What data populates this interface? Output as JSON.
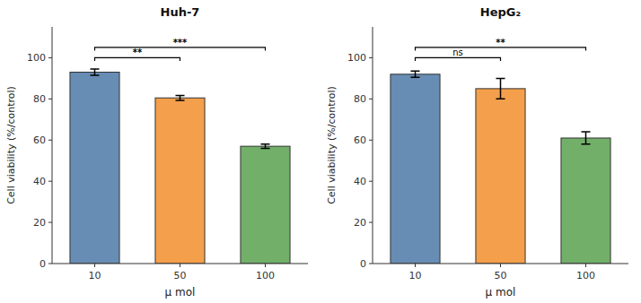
{
  "chart_data": [
    {
      "type": "bar",
      "title": "Huh-7",
      "categories": [
        "10",
        "50",
        "100"
      ],
      "values": [
        93.0,
        80.5,
        57.0
      ],
      "errors": [
        1.5,
        1.2,
        1.0
      ],
      "ylabel": "Cell viability (%/control)",
      "xlabel": "μ mol",
      "ylim": [
        0,
        115
      ],
      "yticks": [
        0,
        20,
        40,
        60,
        80,
        100
      ],
      "grid": false,
      "brackets": [
        {
          "x1": 0,
          "x2": 1,
          "label": "**",
          "y": 98.5,
          "y2": 100
        },
        {
          "x1": 0,
          "x2": 2,
          "label": "***",
          "y": 103.5,
          "y2": 105
        }
      ]
    },
    {
      "type": "bar",
      "title": "HepG₂",
      "categories": [
        "10",
        "50",
        "100"
      ],
      "values": [
        92.0,
        85.0,
        61.0
      ],
      "errors": [
        1.5,
        5.0,
        3.0
      ],
      "ylabel": "Cell viability (%/control)",
      "xlabel": "μ mol",
      "ylim": [
        0,
        115
      ],
      "yticks": [
        0,
        20,
        40,
        60,
        80,
        100
      ],
      "grid": false,
      "brackets": [
        {
          "x1": 0,
          "x2": 1,
          "label": "ns",
          "y": 98.5,
          "y2": 100
        },
        {
          "x1": 0,
          "x2": 2,
          "label": "**",
          "y": 103.5,
          "y2": 105
        }
      ]
    }
  ]
}
